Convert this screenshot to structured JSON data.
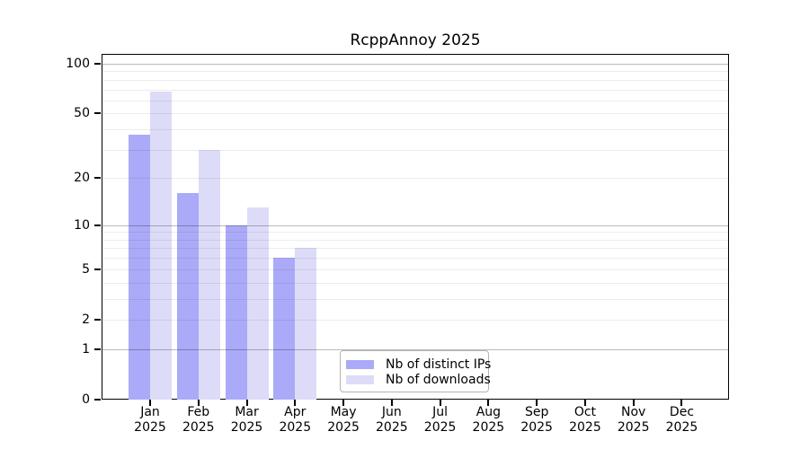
{
  "title": "RcppAnnoy 2025",
  "chart_data": {
    "type": "bar",
    "title": "RcppAnnoy 2025",
    "scale": "log1p",
    "categories": [
      "Jan",
      "Feb",
      "Mar",
      "Apr",
      "May",
      "Jun",
      "Jul",
      "Aug",
      "Sep",
      "Oct",
      "Nov",
      "Dec"
    ],
    "year_label": "2025",
    "series": [
      {
        "name": "Nb of distinct IPs",
        "color": "#aaaaf8",
        "values": [
          37,
          16,
          10,
          6,
          null,
          null,
          null,
          null,
          null,
          null,
          null,
          null
        ]
      },
      {
        "name": "Nb of downloads",
        "color": "#dcdcf8",
        "values": [
          68,
          30,
          13,
          7,
          null,
          null,
          null,
          null,
          null,
          null,
          null,
          null
        ]
      }
    ],
    "yticks": [
      0,
      1,
      2,
      5,
      10,
      20,
      50,
      100
    ],
    "ylim": [
      0,
      100
    ],
    "minor_grid_values": [
      2,
      3,
      4,
      5,
      6,
      7,
      8,
      9,
      20,
      30,
      40,
      50,
      60,
      70,
      80,
      90
    ],
    "decade_grid_values": [
      1,
      10,
      100
    ],
    "grid": true,
    "legend_position": "inside-bottom-center",
    "xlabel": "",
    "ylabel": ""
  },
  "legend": {
    "items": [
      {
        "label": "Nb of distinct IPs"
      },
      {
        "label": "Nb of downloads"
      }
    ]
  }
}
